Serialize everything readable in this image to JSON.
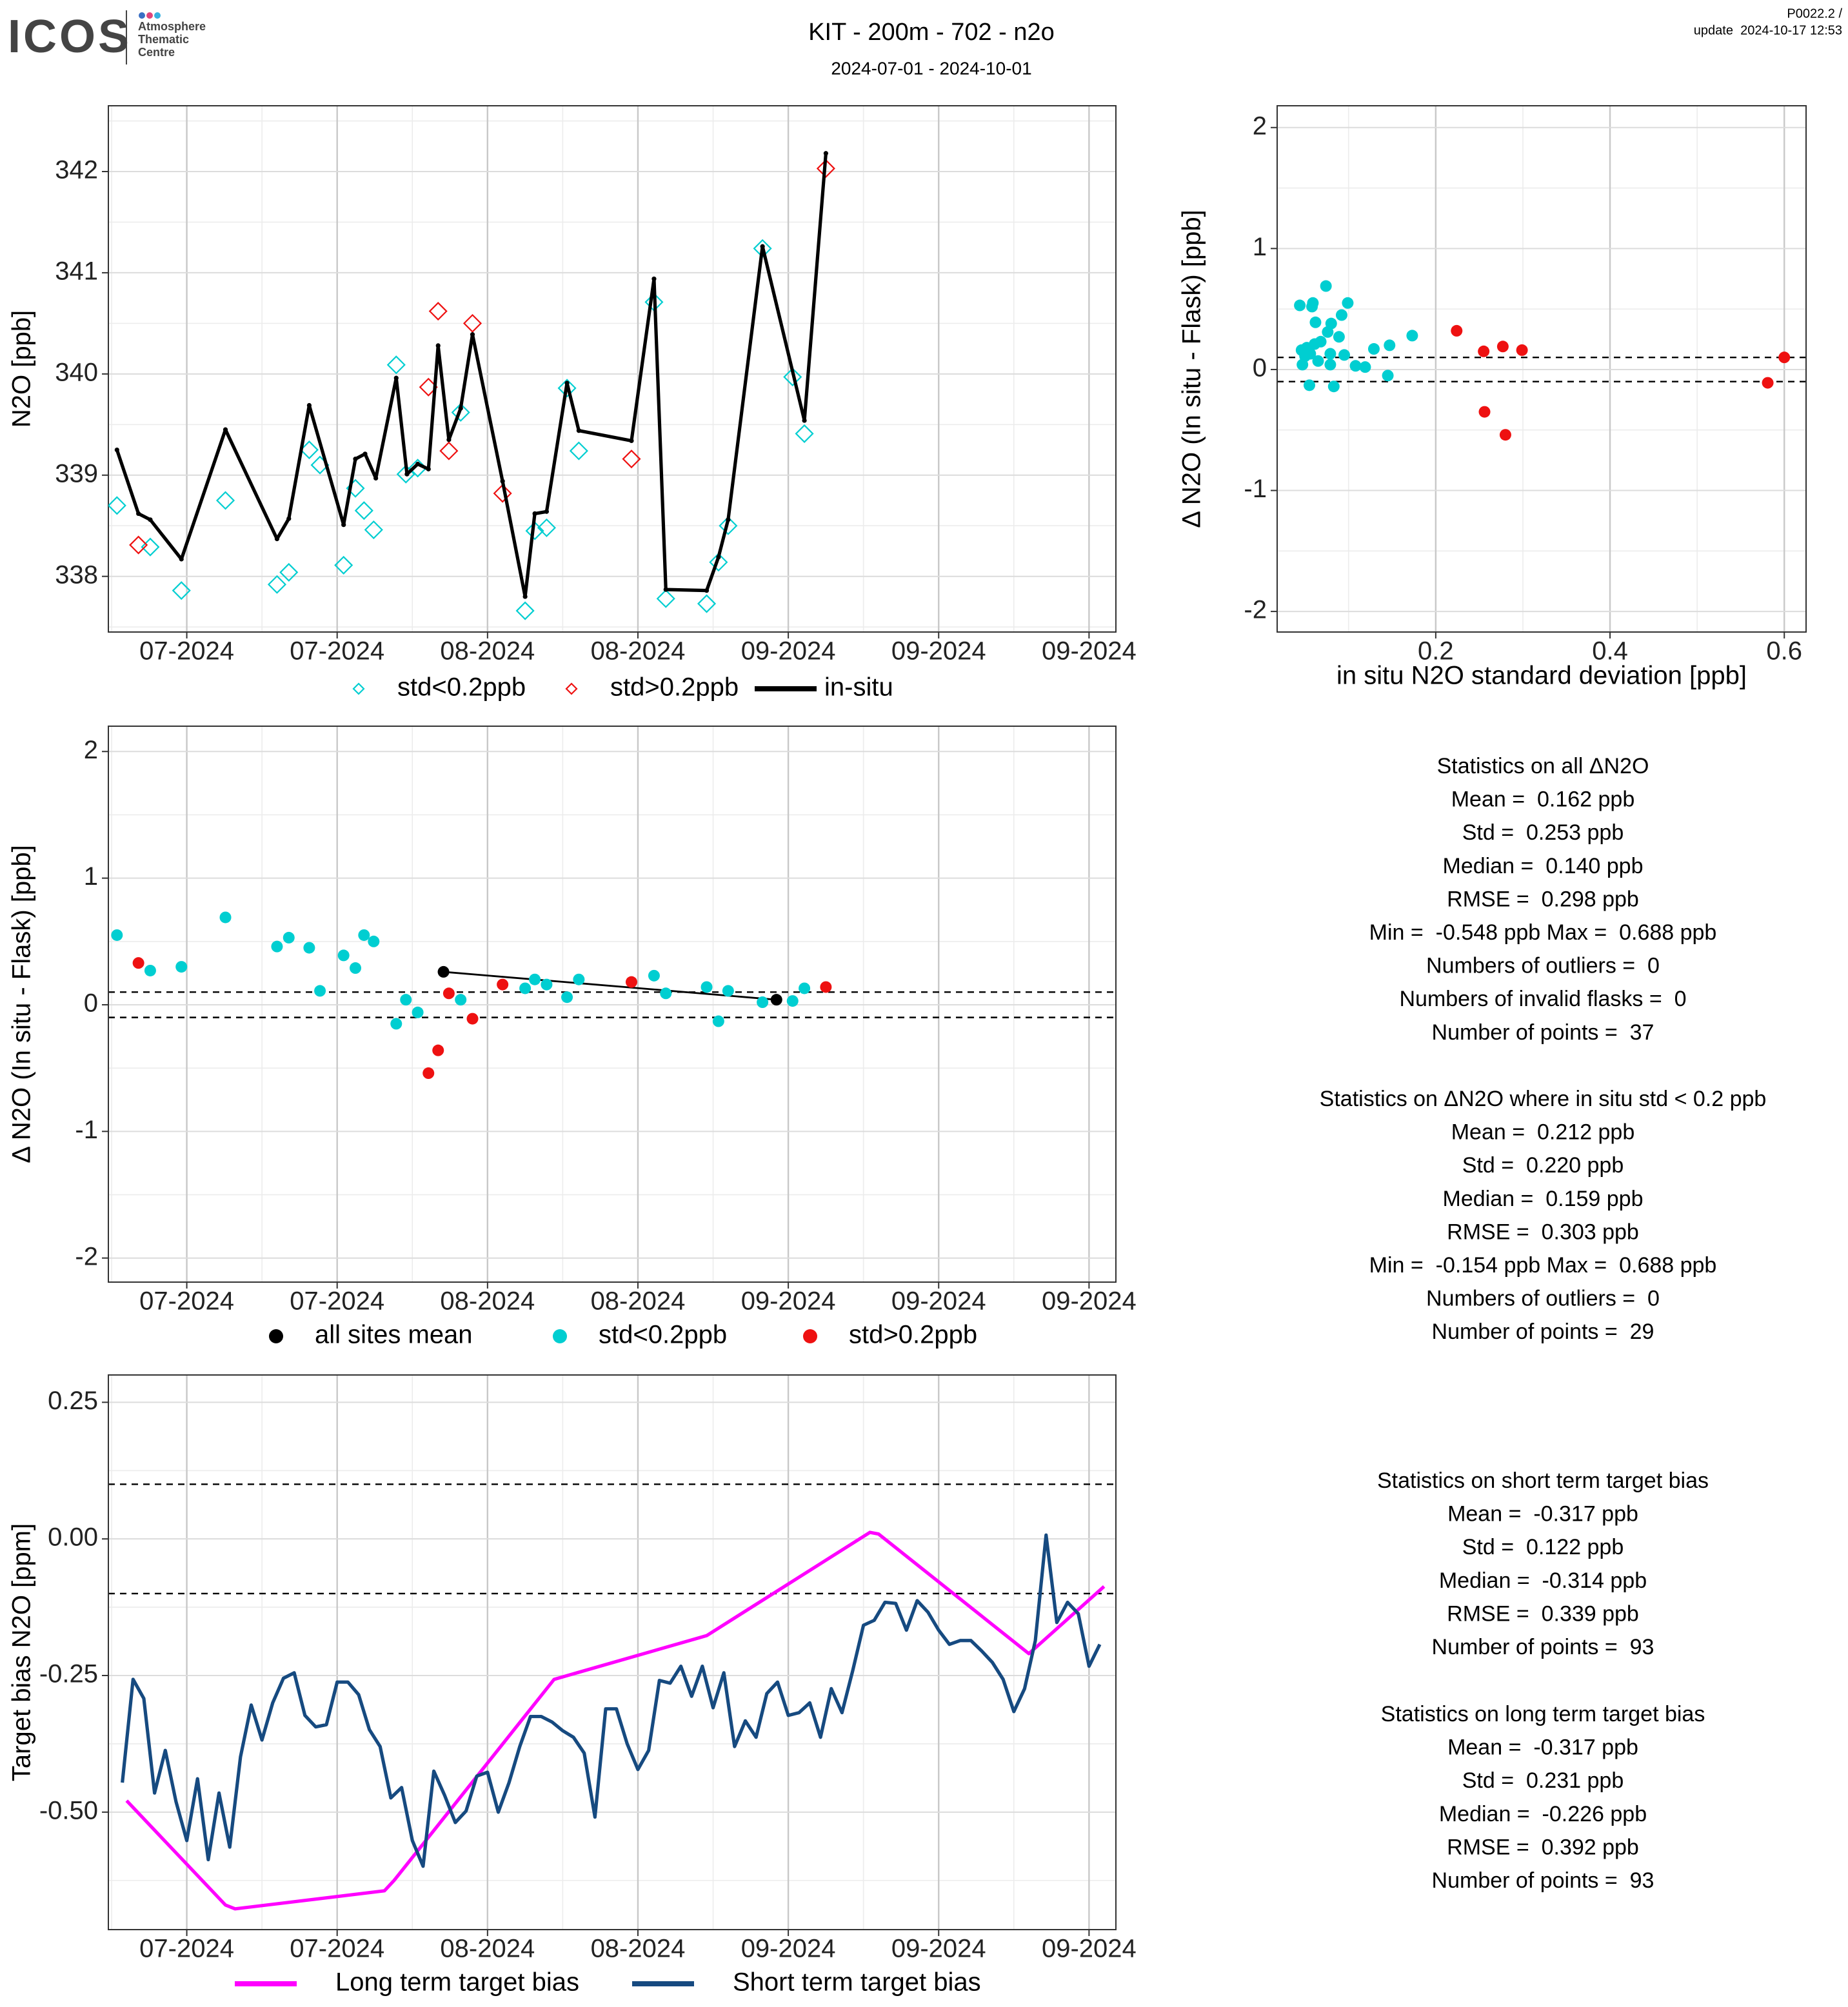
{
  "header": {
    "logo": "ICOS",
    "logo_lines": [
      "Atmosphere",
      "Thematic",
      "Centre"
    ],
    "title": "KIT - 200m - 702 - n2o",
    "subtitle": "2024-07-01 - 2024-10-01",
    "version": "P0022.2 /",
    "update": "update  2024-10-17 12:53"
  },
  "chart_data": [
    {
      "type": "line",
      "ylabel": "N2O [ppb]",
      "xlim": [
        181.7,
        275.5
      ],
      "ylim": [
        337.45,
        342.65
      ],
      "xticks": [
        {
          "value": 189,
          "label": "07-2024"
        },
        {
          "value": 203,
          "label": "07-2024"
        },
        {
          "value": 217,
          "label": "08-2024"
        },
        {
          "value": 231,
          "label": "08-2024"
        },
        {
          "value": 245,
          "label": "09-2024"
        },
        {
          "value": 259,
          "label": "09-2024"
        },
        {
          "value": 273,
          "label": "09-2024"
        }
      ],
      "yticks": [
        338,
        339,
        340,
        341,
        342
      ],
      "grid": true,
      "series": [
        {
          "name": "std<0.2ppb",
          "color": "#00CED1",
          "style": "diamond",
          "x": [
            182.5,
            185.6,
            188.5,
            192.6,
            197.4,
            198.5,
            200.4,
            201.4,
            203.6,
            204.7,
            205.5,
            206.4,
            208.5,
            209.4,
            210.5,
            214.5,
            220.5,
            221.4,
            222.5,
            224.4,
            225.5,
            232.5,
            233.6,
            237.4,
            238.5,
            239.4,
            242.6,
            245.4,
            246.5
          ],
          "values": [
            338.7,
            338.29,
            337.86,
            338.75,
            337.92,
            338.04,
            339.25,
            339.1,
            338.11,
            338.87,
            338.65,
            338.46,
            340.09,
            339.01,
            339.07,
            339.62,
            337.66,
            338.45,
            338.48,
            339.86,
            339.24,
            340.71,
            337.78,
            337.73,
            338.14,
            338.5,
            341.24,
            339.97,
            339.41
          ]
        },
        {
          "name": "std>0.2ppb",
          "color": "#EE1111",
          "style": "diamond",
          "x": [
            184.5,
            211.5,
            212.4,
            213.4,
            215.6,
            218.4,
            230.4,
            248.5
          ],
          "values": [
            338.31,
            339.87,
            340.62,
            339.24,
            340.5,
            338.82,
            339.16,
            342.03
          ]
        },
        {
          "name": "in-situ",
          "color": "#000000",
          "style": "line+dot",
          "x": [
            182.5,
            184.5,
            185.6,
            188.5,
            192.6,
            197.4,
            198.5,
            200.4,
            203.6,
            204.7,
            205.6,
            206.6,
            208.5,
            209.5,
            210.5,
            211.5,
            212.4,
            213.4,
            214.5,
            215.6,
            218.4,
            220.5,
            221.4,
            222.5,
            224.4,
            225.5,
            230.4,
            232.5,
            233.6,
            237.4,
            238.5,
            239.4,
            242.6,
            246.5,
            248.5
          ],
          "values": [
            339.25,
            338.62,
            338.56,
            338.17,
            339.45,
            338.37,
            338.57,
            339.69,
            338.51,
            339.16,
            339.21,
            338.97,
            339.96,
            339.01,
            339.11,
            339.06,
            340.28,
            339.35,
            339.66,
            340.39,
            338.94,
            337.8,
            338.62,
            338.64,
            339.91,
            339.44,
            339.34,
            340.94,
            337.87,
            337.86,
            338.19,
            338.56,
            341.26,
            339.54,
            342.18
          ]
        }
      ]
    },
    {
      "type": "scatter",
      "xlabel": "in situ N2O standard deviation [ppb]",
      "ylabel": "Δ N2O (In situ - Flask) [ppb]",
      "xlim": [
        0.018,
        0.625
      ],
      "ylim": [
        -2.17,
        2.18
      ],
      "xticks": [
        0.2,
        0.4,
        0.6
      ],
      "yticks": [
        -2,
        -1,
        0,
        1,
        2
      ],
      "grid": true,
      "hlines": [
        0.1,
        -0.1
      ],
      "series": [
        {
          "color": "#00CED1",
          "style": "dot",
          "x": [
            0.044,
            0.058,
            0.059,
            0.074,
            0.099,
            0.062,
            0.092,
            0.08,
            0.052,
            0.061,
            0.076,
            0.089,
            0.068,
            0.056,
            0.047,
            0.065,
            0.079,
            0.095,
            0.055,
            0.083,
            0.108,
            0.119,
            0.129,
            0.147,
            0.173,
            0.145,
            0.079,
            0.05,
            0.046
          ],
          "values": [
            0.53,
            0.52,
            0.55,
            0.69,
            0.55,
            0.39,
            0.45,
            0.38,
            0.18,
            0.21,
            0.31,
            0.27,
            0.23,
            0.13,
            0.04,
            0.07,
            0.13,
            0.12,
            -0.13,
            -0.14,
            0.03,
            0.02,
            0.17,
            0.2,
            0.28,
            -0.05,
            0.04,
            0.11,
            0.16
          ]
        },
        {
          "color": "#EE1111",
          "style": "dot",
          "x": [
            0.224,
            0.255,
            0.277,
            0.299,
            0.256,
            0.28,
            0.581,
            0.6
          ],
          "values": [
            0.32,
            0.15,
            0.19,
            0.16,
            -0.35,
            -0.54,
            -0.11,
            0.1
          ]
        }
      ]
    },
    {
      "type": "line",
      "ylabel": "Δ N2O (In situ - Flask) [ppb]",
      "xlim": [
        181.7,
        275.5
      ],
      "ylim": [
        -2.19,
        2.2
      ],
      "xticks": [
        {
          "value": 189,
          "label": "07-2024"
        },
        {
          "value": 203,
          "label": "07-2024"
        },
        {
          "value": 217,
          "label": "08-2024"
        },
        {
          "value": 231,
          "label": "08-2024"
        },
        {
          "value": 245,
          "label": "09-2024"
        },
        {
          "value": 259,
          "label": "09-2024"
        },
        {
          "value": 273,
          "label": "09-2024"
        }
      ],
      "yticks": [
        -2,
        -1,
        0,
        1,
        2
      ],
      "grid": true,
      "hlines": [
        0.1,
        -0.1
      ],
      "series": [
        {
          "name": "all sites mean",
          "color": "#000000",
          "style": "line+bigdot",
          "x": [
            212.9,
            243.9
          ],
          "values": [
            0.26,
            0.04
          ]
        },
        {
          "name": "std<0.2ppb",
          "color": "#00CED1",
          "style": "dot",
          "x": [
            182.5,
            185.6,
            188.5,
            192.6,
            197.4,
            198.5,
            200.4,
            201.4,
            203.6,
            204.7,
            205.5,
            206.4,
            208.5,
            209.4,
            210.5,
            214.5,
            220.5,
            221.4,
            222.5,
            224.4,
            225.5,
            232.5,
            233.6,
            237.4,
            238.5,
            239.4,
            242.6,
            245.4,
            246.5
          ],
          "values": [
            0.55,
            0.27,
            0.3,
            0.69,
            0.46,
            0.53,
            0.45,
            0.11,
            0.39,
            0.29,
            0.55,
            0.5,
            -0.15,
            0.04,
            -0.06,
            0.04,
            0.13,
            0.2,
            0.16,
            0.06,
            0.2,
            0.23,
            0.09,
            0.14,
            -0.13,
            0.11,
            0.02,
            0.03,
            0.13
          ]
        },
        {
          "name": "std>0.2ppb",
          "color": "#EE1111",
          "style": "dot",
          "x": [
            184.5,
            211.5,
            212.4,
            213.4,
            215.6,
            218.4,
            230.4,
            248.5
          ],
          "values": [
            0.33,
            -0.54,
            -0.36,
            0.09,
            -0.11,
            0.16,
            0.18,
            0.14
          ]
        }
      ]
    },
    {
      "type": "line",
      "ylabel": "Target bias N2O [ppm]",
      "xlim": [
        181.7,
        275.5
      ],
      "ylim": [
        -0.715,
        0.3
      ],
      "xticks": [
        {
          "value": 189,
          "label": "07-2024"
        },
        {
          "value": 203,
          "label": "07-2024"
        },
        {
          "value": 217,
          "label": "08-2024"
        },
        {
          "value": 231,
          "label": "08-2024"
        },
        {
          "value": 245,
          "label": "09-2024"
        },
        {
          "value": 259,
          "label": "09-2024"
        },
        {
          "value": 273,
          "label": "09-2024"
        }
      ],
      "yticks": [
        0.25,
        {
          "value": 0,
          "label": "0.00"
        },
        -0.25,
        {
          "value": -0.5,
          "label": "-0.50"
        }
      ],
      "grid": true,
      "hlines": [
        0.1,
        -0.1
      ],
      "series": [
        {
          "name": "Long term target bias",
          "color": "#FF00FF",
          "style": "line",
          "x": [
            183.4,
            192.6,
            193.5,
            207.4,
            208.3,
            223.2,
            237.4,
            252.6,
            253.4,
            267.4,
            274.4
          ],
          "values": [
            -0.479,
            -0.67,
            -0.677,
            -0.644,
            -0.625,
            -0.257,
            -0.177,
            0.012,
            0.009,
            -0.21,
            -0.087
          ]
        },
        {
          "name": "Short term target bias",
          "color": "#164A80",
          "style": "line",
          "x": [
            183,
            184,
            185,
            186,
            187,
            188,
            189,
            190,
            191,
            192,
            193,
            194,
            195,
            196,
            197,
            198,
            199,
            200,
            201,
            202,
            203,
            204,
            205,
            206,
            207,
            208,
            209,
            210,
            211,
            212,
            213,
            214,
            215,
            216,
            217,
            218,
            219,
            220,
            221,
            222,
            223,
            224,
            225,
            226,
            227,
            228,
            229,
            230,
            231,
            232,
            233,
            234,
            235,
            236,
            237,
            238,
            239,
            240,
            241,
            242,
            243,
            244,
            245,
            246,
            247,
            248,
            249,
            250,
            251,
            252,
            253,
            254,
            255,
            256,
            257,
            258,
            259,
            260,
            261,
            262,
            263,
            264,
            265,
            266,
            267,
            268,
            269,
            270,
            271,
            272,
            273,
            274
          ],
          "values": [
            -0.446,
            -0.257,
            -0.292,
            -0.465,
            -0.387,
            -0.481,
            -0.552,
            -0.439,
            -0.587,
            -0.465,
            -0.564,
            -0.399,
            -0.304,
            -0.368,
            -0.3,
            -0.255,
            -0.245,
            -0.323,
            -0.344,
            -0.34,
            -0.262,
            -0.262,
            -0.285,
            -0.349,
            -0.38,
            -0.474,
            -0.455,
            -0.552,
            -0.599,
            -0.425,
            -0.469,
            -0.519,
            -0.498,
            -0.434,
            -0.427,
            -0.5,
            -0.446,
            -0.38,
            -0.325,
            -0.325,
            -0.335,
            -0.351,
            -0.363,
            -0.392,
            -0.509,
            -0.311,
            -0.311,
            -0.375,
            -0.422,
            -0.387,
            -0.259,
            -0.264,
            -0.233,
            -0.288,
            -0.233,
            -0.309,
            -0.245,
            -0.38,
            -0.333,
            -0.363,
            -0.283,
            -0.262,
            -0.323,
            -0.318,
            -0.3,
            -0.363,
            -0.274,
            -0.318,
            -0.241,
            -0.158,
            -0.149,
            -0.116,
            -0.118,
            -0.167,
            -0.113,
            -0.134,
            -0.167,
            -0.193,
            -0.186,
            -0.186,
            -0.205,
            -0.226,
            -0.257,
            -0.316,
            -0.274,
            -0.186,
            0.007,
            -0.153,
            -0.116,
            -0.137,
            -0.233,
            -0.193
          ]
        }
      ]
    }
  ],
  "stats": [
    [
      "Statistics on all ΔN2O",
      "Mean =  0.162 ppb",
      "Std =  0.253 ppb",
      "Median =  0.140 ppb",
      "RMSE =  0.298 ppb",
      "Min =  -0.548 ppb Max =  0.688 ppb",
      "Numbers of outliers =  0",
      "Numbers of invalid flasks =  0",
      "Number of points =  37"
    ],
    [
      "Statistics on ΔN2O where in situ std < 0.2 ppb",
      "Mean =  0.212 ppb",
      "Std =  0.220 ppb",
      "Median =  0.159 ppb",
      "RMSE =  0.303 ppb",
      "Min =  -0.154 ppb Max =  0.688 ppb",
      "Numbers of outliers =  0",
      "Number of points =  29"
    ],
    [
      "Statistics on short term target bias",
      "Mean =  -0.317 ppb",
      "Std =  0.122 ppb",
      "Median =  -0.314 ppb",
      "RMSE =  0.339 ppb",
      "Number of points =  93"
    ],
    [
      "Statistics on long term target bias",
      "Mean =  -0.317 ppb",
      "Std =  0.231 ppb",
      "Median =  -0.226 ppb",
      "RMSE =  0.392 ppb",
      "Number of points =  93"
    ]
  ]
}
